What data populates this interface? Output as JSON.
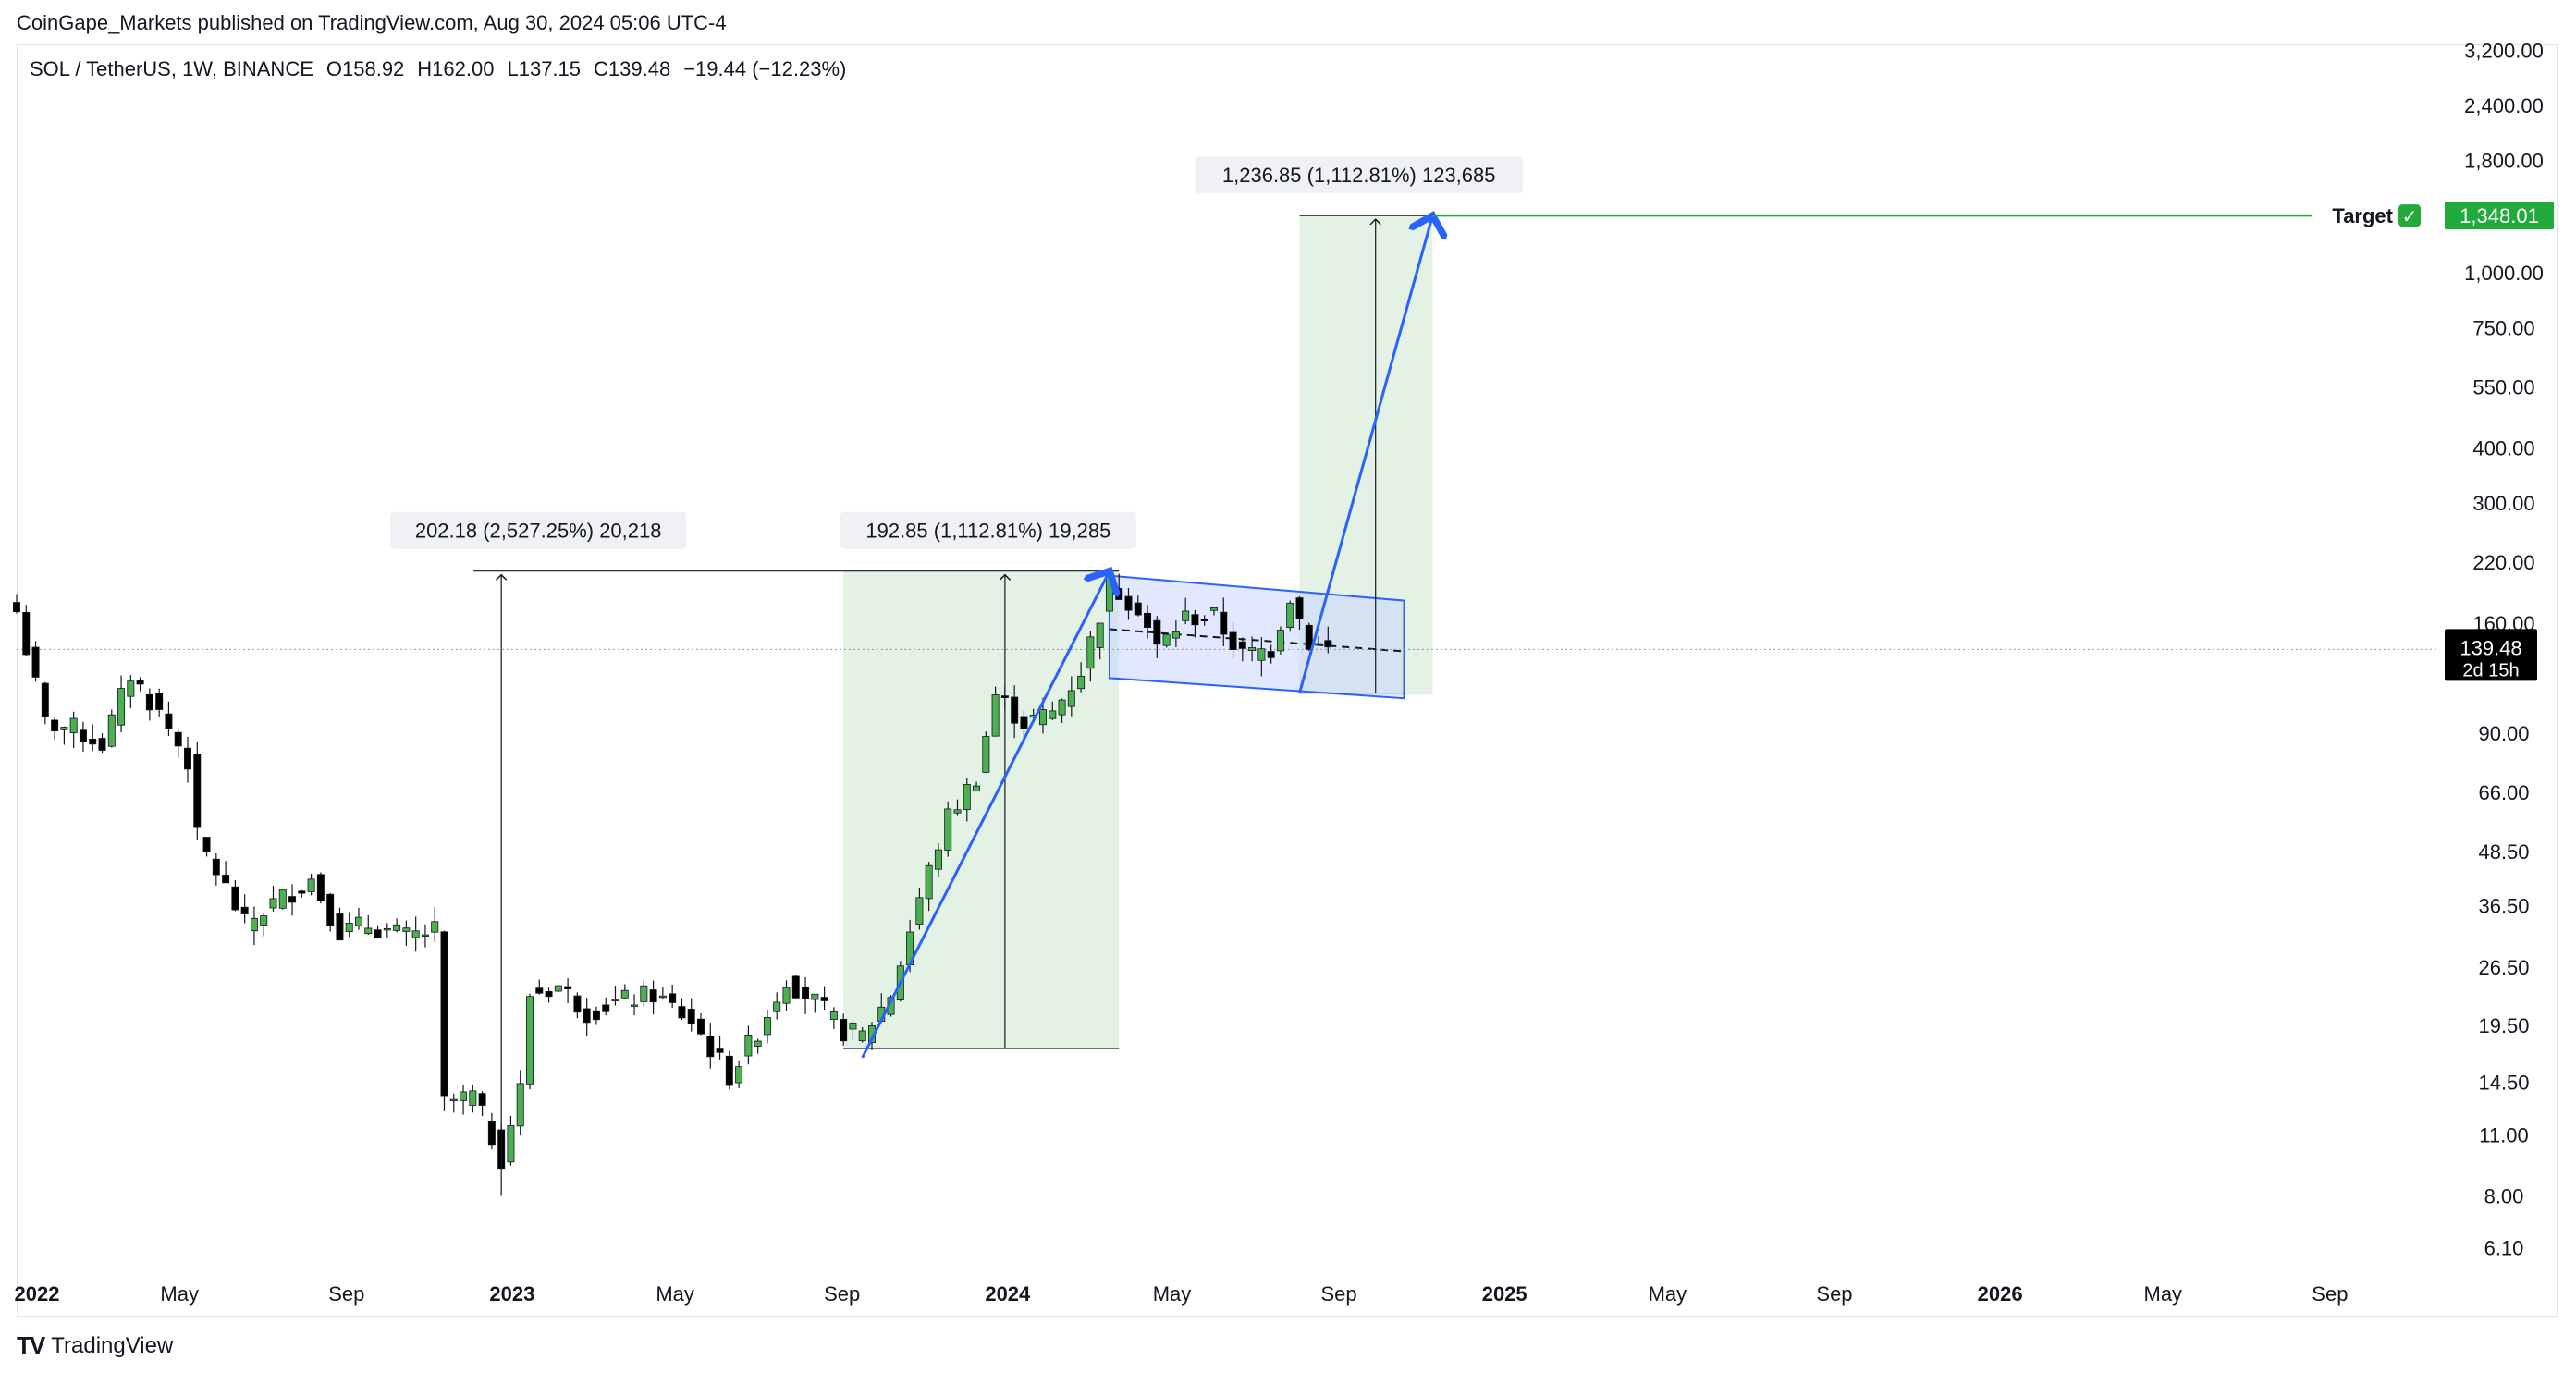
{
  "header": {
    "publisher": "CoinGape_Markets published on TradingView.com, Aug 30, 2024 05:06 UTC-4"
  },
  "legend": {
    "symbol": "SOL / TetherUS, 1W, BINANCE",
    "open": "O158.92",
    "high": "H162.00",
    "low": "L137.15",
    "close": "C139.48",
    "change": "−19.44 (−12.23%)"
  },
  "footer": {
    "brand": "TradingView",
    "logo": "TV"
  },
  "chart_data": {
    "type": "candlestick",
    "y_scale": "log",
    "ylim": [
      5.8,
      3300
    ],
    "y_ticks": [
      {
        "value": 3200,
        "label": "3,200.00"
      },
      {
        "value": 2400,
        "label": "2,400.00"
      },
      {
        "value": 1800,
        "label": "1,800.00"
      },
      {
        "value": 1000,
        "label": "1,000.00"
      },
      {
        "value": 750,
        "label": "750.00"
      },
      {
        "value": 550,
        "label": "550.00"
      },
      {
        "value": 400,
        "label": "400.00"
      },
      {
        "value": 300,
        "label": "300.00"
      },
      {
        "value": 220,
        "label": "220.00"
      },
      {
        "value": 160,
        "label": "160.00"
      },
      {
        "value": 90,
        "label": "90.00"
      },
      {
        "value": 66,
        "label": "66.00"
      },
      {
        "value": 48.5,
        "label": "48.50"
      },
      {
        "value": 36.5,
        "label": "36.50"
      },
      {
        "value": 26.5,
        "label": "26.50"
      },
      {
        "value": 19.5,
        "label": "19.50"
      },
      {
        "value": 14.5,
        "label": "14.50"
      },
      {
        "value": 11,
        "label": "11.00"
      },
      {
        "value": 8,
        "label": "8.00"
      },
      {
        "value": 6.1,
        "label": "6.10"
      }
    ],
    "x_ticks": [
      {
        "date": "2022-01-01",
        "label": "2022",
        "bold": true
      },
      {
        "date": "2022-05-01",
        "label": "May",
        "bold": false
      },
      {
        "date": "2022-09-01",
        "label": "Sep",
        "bold": false
      },
      {
        "date": "2023-01-01",
        "label": "2023",
        "bold": true
      },
      {
        "date": "2023-05-01",
        "label": "May",
        "bold": false
      },
      {
        "date": "2023-09-01",
        "label": "Sep",
        "bold": false
      },
      {
        "date": "2024-01-01",
        "label": "2024",
        "bold": true
      },
      {
        "date": "2024-05-01",
        "label": "May",
        "bold": false
      },
      {
        "date": "2024-09-01",
        "label": "Sep",
        "bold": false
      },
      {
        "date": "2025-01-01",
        "label": "2025",
        "bold": true
      },
      {
        "date": "2025-05-01",
        "label": "May",
        "bold": false
      },
      {
        "date": "2025-09-01",
        "label": "Sep",
        "bold": false
      },
      {
        "date": "2026-01-01",
        "label": "2026",
        "bold": true
      },
      {
        "date": "2026-05-01",
        "label": "May",
        "bold": false
      },
      {
        "date": "2026-09-01",
        "label": "Sep",
        "bold": false
      }
    ],
    "x_range": [
      "2022-01-01",
      "2026-11-15"
    ],
    "weekly_closes": [
      {
        "date": "2022-01-01",
        "value": 170
      },
      {
        "date": "2022-01-22",
        "value": 95
      },
      {
        "date": "2022-02-12",
        "value": 92
      },
      {
        "date": "2022-03-05",
        "value": 85
      },
      {
        "date": "2022-03-26",
        "value": 122
      },
      {
        "date": "2022-04-16",
        "value": 100
      },
      {
        "date": "2022-05-07",
        "value": 78
      },
      {
        "date": "2022-05-14",
        "value": 52
      },
      {
        "date": "2022-06-04",
        "value": 40
      },
      {
        "date": "2022-06-18",
        "value": 33
      },
      {
        "date": "2022-07-09",
        "value": 37
      },
      {
        "date": "2022-08-06",
        "value": 42
      },
      {
        "date": "2022-08-27",
        "value": 32
      },
      {
        "date": "2022-09-17",
        "value": 33
      },
      {
        "date": "2022-10-15",
        "value": 31
      },
      {
        "date": "2022-11-05",
        "value": 32
      },
      {
        "date": "2022-11-12",
        "value": 13
      },
      {
        "date": "2022-12-03",
        "value": 13.5
      },
      {
        "date": "2022-12-24",
        "value": 9.8
      },
      {
        "date": "2023-01-07",
        "value": 14
      },
      {
        "date": "2023-01-14",
        "value": 23
      },
      {
        "date": "2023-02-04",
        "value": 24
      },
      {
        "date": "2023-02-25",
        "value": 21
      },
      {
        "date": "2023-03-18",
        "value": 22
      },
      {
        "date": "2023-04-15",
        "value": 23
      },
      {
        "date": "2023-05-13",
        "value": 20
      },
      {
        "date": "2023-06-10",
        "value": 15
      },
      {
        "date": "2023-07-01",
        "value": 19
      },
      {
        "date": "2023-07-22",
        "value": 25
      },
      {
        "date": "2023-08-12",
        "value": 22
      },
      {
        "date": "2023-09-02",
        "value": 19
      },
      {
        "date": "2023-09-16",
        "value": 18.5
      },
      {
        "date": "2023-10-07",
        "value": 23
      },
      {
        "date": "2023-10-28",
        "value": 38
      },
      {
        "date": "2023-11-18",
        "value": 58
      },
      {
        "date": "2023-12-09",
        "value": 72
      },
      {
        "date": "2023-12-23",
        "value": 110
      },
      {
        "date": "2024-01-13",
        "value": 95
      },
      {
        "date": "2024-02-03",
        "value": 100
      },
      {
        "date": "2024-02-24",
        "value": 125
      },
      {
        "date": "2024-03-16",
        "value": 195
      },
      {
        "date": "2024-04-06",
        "value": 175
      },
      {
        "date": "2024-04-20",
        "value": 140
      },
      {
        "date": "2024-05-11",
        "value": 165
      },
      {
        "date": "2024-06-01",
        "value": 165
      },
      {
        "date": "2024-06-22",
        "value": 135
      },
      {
        "date": "2024-07-13",
        "value": 140
      },
      {
        "date": "2024-07-27",
        "value": 185
      },
      {
        "date": "2024-08-10",
        "value": 145
      },
      {
        "date": "2024-08-24",
        "value": 139.48
      }
    ],
    "current_price": {
      "value": 139.48,
      "label": "139.48",
      "countdown": "2d 15h"
    },
    "target": {
      "value": 1348.01,
      "label": "1,348.01",
      "title": "Target",
      "check": "✓",
      "start_date": "2024-11-09"
    },
    "measurements": [
      {
        "label": "202.18 (2,527.25%) 20,218",
        "x_date": "2022-12-24",
        "from": 8,
        "to": 210
      },
      {
        "label": "192.85 (1,112.81%) 19,285",
        "from_date": "2023-09-02",
        "to_date": "2024-03-23",
        "from": 17.3,
        "to": 210,
        "x_date": "2023-12-30"
      },
      {
        "label": "1,236.85 (1,112.81%) 123,685",
        "from_date": "2024-08-03",
        "to_date": "2024-11-09",
        "from": 111,
        "to": 1348.01,
        "x_date": "2024-09-28"
      }
    ],
    "channel": {
      "upper": [
        {
          "date": "2024-03-16",
          "value": 205
        },
        {
          "date": "2024-10-19",
          "value": 180
        }
      ],
      "lower": [
        {
          "date": "2024-03-16",
          "value": 120
        },
        {
          "date": "2024-10-19",
          "value": 108
        }
      ],
      "mid": [
        {
          "date": "2024-03-16",
          "value": 155
        },
        {
          "date": "2024-10-19",
          "value": 138
        }
      ]
    },
    "projections": [
      {
        "from_date": "2023-09-16",
        "from": 16.5,
        "to_date": "2024-03-16",
        "to": 210
      },
      {
        "from_date": "2024-08-03",
        "from": 111,
        "to_date": "2024-11-09",
        "to": 1348.01
      }
    ],
    "colors": {
      "up": "#4caf50",
      "down": "#000000",
      "target": "#22ab3c",
      "projection": "#2962ff",
      "zone": "#e3f2e4",
      "channel": "#c8d6ff"
    }
  }
}
